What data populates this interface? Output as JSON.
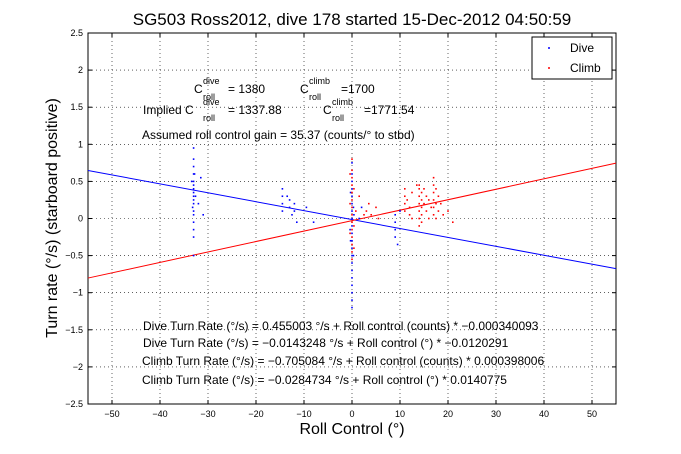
{
  "chart_data": {
    "type": "scatter",
    "title": "SG503 Ross2012, dive 178 started 15-Dec-2012 04:50:59",
    "xlabel": "Roll Control (°)",
    "ylabel": "Turn rate (°/s) (starboard positive)",
    "xlim": [
      -55,
      55
    ],
    "ylim": [
      -2.5,
      2.5
    ],
    "xticks": [
      "−50",
      "−40",
      "−30",
      "−20",
      "−10",
      "0",
      "10",
      "20",
      "30",
      "40",
      "50"
    ],
    "yticks": [
      "2.5",
      "2",
      "1.5",
      "1",
      "0.5",
      "0",
      "−0.5",
      "−1",
      "−1.5",
      "−2",
      "−2.5"
    ],
    "grid": true,
    "legend_position": "top-right",
    "colors": {
      "dive": "#0000ff",
      "climb": "#ff0000"
    },
    "series": [
      {
        "name": "Dive",
        "color": "#0000ff",
        "points": [
          [
            -33,
            0.95
          ],
          [
            -33,
            0.8
          ],
          [
            -33,
            0.7
          ],
          [
            -33,
            0.6
          ],
          [
            -33,
            0.5
          ],
          [
            -33,
            0.45
          ],
          [
            -33,
            0.4
          ],
          [
            -33,
            0.35
          ],
          [
            -33,
            0.3
          ],
          [
            -33,
            0.25
          ],
          [
            -33,
            0.2
          ],
          [
            -33,
            0.1
          ],
          [
            -33,
            0.05
          ],
          [
            -33,
            -0.05
          ],
          [
            -33,
            -0.15
          ],
          [
            -33,
            -0.25
          ],
          [
            -33,
            -0.5
          ],
          [
            -33.4,
            0.5
          ],
          [
            -32.6,
            0.3
          ],
          [
            -33.2,
            0.15
          ],
          [
            -32.8,
            0.6
          ],
          [
            -32,
            0.2
          ],
          [
            -31.5,
            0.55
          ],
          [
            -31,
            0.05
          ],
          [
            -14.5,
            0.4
          ],
          [
            -14.5,
            0.3
          ],
          [
            -14.5,
            0.2
          ],
          [
            -14.5,
            0.1
          ],
          [
            -13.5,
            0.3
          ],
          [
            -13,
            0.25
          ],
          [
            -13,
            0.15
          ],
          [
            -12.5,
            0.05
          ],
          [
            -12,
            0.2
          ],
          [
            -12,
            0.1
          ],
          [
            -11.5,
            -0.05
          ],
          [
            -9.5,
            0.15
          ],
          [
            -8,
            -0.05
          ],
          [
            0,
            0.75
          ],
          [
            0,
            0.6
          ],
          [
            0,
            0.5
          ],
          [
            0,
            0.4
          ],
          [
            0,
            0.3
          ],
          [
            0,
            0.2
          ],
          [
            0,
            0.1
          ],
          [
            0,
            0.0
          ],
          [
            0,
            -0.1
          ],
          [
            0,
            -0.2
          ],
          [
            0,
            -0.3
          ],
          [
            0,
            -0.4
          ],
          [
            0,
            -0.5
          ],
          [
            0,
            -0.6
          ],
          [
            0,
            -0.7
          ],
          [
            0,
            -0.8
          ],
          [
            0,
            -0.9
          ],
          [
            0,
            -1.0
          ],
          [
            0,
            -1.1
          ],
          [
            0,
            -1.2
          ],
          [
            -0.3,
            0.35
          ],
          [
            -0.3,
            -0.3
          ],
          [
            0.3,
            0.15
          ],
          [
            0.3,
            -0.5
          ],
          [
            -0.4,
            -0.15
          ],
          [
            0.4,
            0.05
          ],
          [
            1.5,
            0.0
          ],
          [
            2,
            0.15
          ],
          [
            9,
            -0.05
          ],
          [
            9,
            -0.15
          ],
          [
            9,
            -0.25
          ],
          [
            9.5,
            -0.35
          ],
          [
            9,
            0.05
          ],
          [
            10,
            0.1
          ]
        ]
      },
      {
        "name": "Climb",
        "color": "#ff0000",
        "points": [
          [
            0,
            0.8
          ],
          [
            0,
            0.65
          ],
          [
            0,
            0.55
          ],
          [
            0,
            0.45
          ],
          [
            0,
            0.35
          ],
          [
            0,
            0.25
          ],
          [
            0,
            0.15
          ],
          [
            0,
            0.05
          ],
          [
            0,
            -0.05
          ],
          [
            0,
            -0.15
          ],
          [
            0,
            -0.25
          ],
          [
            0,
            -0.35
          ],
          [
            0,
            -0.45
          ],
          [
            0,
            -0.55
          ],
          [
            -0.4,
            0.6
          ],
          [
            -0.4,
            0.2
          ],
          [
            -0.4,
            -0.2
          ],
          [
            0.4,
            0.4
          ],
          [
            0.4,
            -0.1
          ],
          [
            0.4,
            -0.4
          ],
          [
            0.8,
            0.1
          ],
          [
            1.5,
            0.3
          ],
          [
            2.5,
            0.05
          ],
          [
            3,
            0.1
          ],
          [
            3.5,
            0.2
          ],
          [
            4,
            0.05
          ],
          [
            5,
            0.15
          ],
          [
            5.5,
            0.0
          ],
          [
            11,
            0.4
          ],
          [
            11,
            0.3
          ],
          [
            11,
            0.2
          ],
          [
            11,
            0.1
          ],
          [
            11.5,
            0.25
          ],
          [
            12,
            0.05
          ],
          [
            12,
            0.15
          ],
          [
            12.5,
            0.35
          ],
          [
            12.5,
            0.0
          ],
          [
            13.5,
            0.45
          ],
          [
            14,
            0.4
          ],
          [
            14,
            0.3
          ],
          [
            14,
            0.2
          ],
          [
            14,
            0.1
          ],
          [
            14,
            0.0
          ],
          [
            14,
            -0.1
          ],
          [
            14,
            0.45
          ],
          [
            14.5,
            0.35
          ],
          [
            14.5,
            0.25
          ],
          [
            14.5,
            0.15
          ],
          [
            14.5,
            0.05
          ],
          [
            14.5,
            -0.05
          ],
          [
            15,
            0.4
          ],
          [
            15,
            0.2
          ],
          [
            15.5,
            0.3
          ],
          [
            15.5,
            0.1
          ],
          [
            16,
            0.25
          ],
          [
            16,
            0.0
          ],
          [
            16.5,
            0.15
          ],
          [
            17,
            0.55
          ],
          [
            17,
            0.45
          ],
          [
            17,
            0.35
          ],
          [
            17,
            0.25
          ],
          [
            17,
            0.15
          ],
          [
            17,
            0.05
          ],
          [
            17.5,
            0.4
          ],
          [
            17.5,
            0.2
          ],
          [
            17.5,
            0.0
          ],
          [
            18,
            0.3
          ],
          [
            18,
            0.1
          ],
          [
            18.5,
            0.2
          ],
          [
            19,
            0.05
          ],
          [
            20,
            0.1
          ],
          [
            21,
            -0.05
          ]
        ]
      }
    ],
    "fit_lines": [
      {
        "name": "Dive",
        "color": "#0000ff",
        "slope": -0.0120291,
        "intercept": -0.0143248
      },
      {
        "name": "Climb",
        "color": "#ff0000",
        "slope": 0.0140775,
        "intercept": -0.0284734
      }
    ],
    "annotations": {
      "croll_dive_label": "C",
      "croll_dive_sup": "dive",
      "croll_dive_sub": "roll",
      "croll_dive_value": "= 1380",
      "croll_climb_label": "C",
      "croll_climb_sup": "climb",
      "croll_climb_sub": "roll",
      "croll_climb_value": "=1700",
      "implied_prefix": "Implied C",
      "implied_dive_sup": "dive",
      "implied_dive_sub": "roll",
      "implied_dive_value": "= 1337.88",
      "implied_climb_label": "C",
      "implied_climb_sup": "climb",
      "implied_climb_sub": "roll",
      "implied_climb_value": "=1771.54",
      "gain": "Assumed roll control gain = 35.37 (counts/° to stbd)",
      "eq1": "Dive Turn Rate (°/s) = 0.455003 °/s + Roll control (counts) * −0.000340093",
      "eq2": "Dive Turn Rate (°/s) = −0.0143248 °/s + Roll control (°) * −0.0120291",
      "eq3": "Climb Turn Rate (°/s) = −0.705084 °/s + Roll control (counts) * 0.000398006",
      "eq4": "Climb Turn Rate (°/s) = −0.0284734 °/s + Roll control (°) * 0.0140775"
    }
  }
}
